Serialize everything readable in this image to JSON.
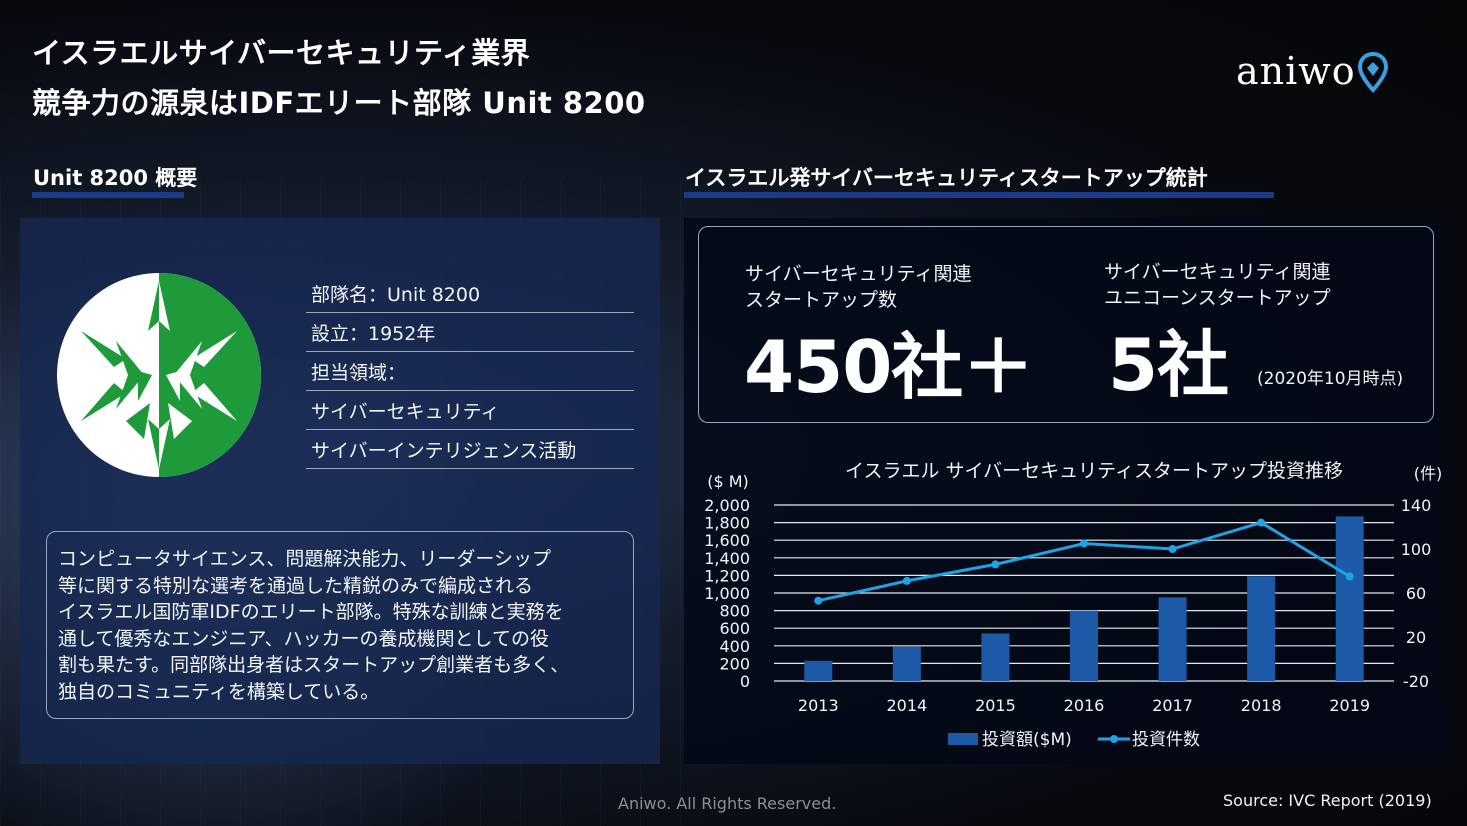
{
  "header": {
    "title_line1": "イスラエルサイバーセキュリティ業界",
    "title_line2": "競争力の源泉はIDFエリート部隊 Unit 8200",
    "logo_text": "aniwo"
  },
  "left": {
    "section_title": "Unit 8200 概要",
    "info_rows": [
      "部隊名：Unit 8200",
      "設立：1952年",
      "担当領域：",
      "サイバーセキュリティ",
      "サイバーインテリジェンス活動"
    ],
    "description_lines": [
      "コンピュータサイエンス、問題解決能力、リーダーシップ",
      "等に関する特別な選考を通過した精鋭のみで編成される",
      "イスラエル国防軍IDFのエリート部隊。特殊な訓練と実務を",
      "通して優秀なエンジニア、ハッカーの養成機関としての役",
      "割も果たす。同部隊出身者はスタートアップ創業者も多く、",
      "独自のコミュニティを構築している。"
    ]
  },
  "right": {
    "section_title": "イスラエル発サイバーセキュリティスタートアップ統計",
    "stat1_label_line1": "サイバーセキュリティ関連",
    "stat1_label_line2": "スタートアップ数",
    "stat1_value": "450社＋",
    "stat2_label_line1": "サイバーセキュリティ関連",
    "stat2_label_line2": "ユニコーンスタートアップ",
    "stat2_value": "5社",
    "stat2_note": "(2020年10月時点)"
  },
  "chart_data": {
    "type": "bar",
    "title": "イスラエル サイバーセキュリティスタートアップ投資推移",
    "categories": [
      "2013",
      "2014",
      "2015",
      "2016",
      "2017",
      "2018",
      "2019"
    ],
    "ylabel": "($ M)",
    "y2label": "(件)",
    "ylim": [
      0,
      2000
    ],
    "yticks": [
      "0",
      "200",
      "400",
      "600",
      "800",
      "1,000",
      "1,200",
      "1,400",
      "1,600",
      "1,800",
      "2,000"
    ],
    "y2lim": [
      -20,
      140
    ],
    "y2ticks": [
      "-20",
      "20",
      "60",
      "100",
      "140"
    ],
    "grid": true,
    "legend_position": "bottom",
    "series": [
      {
        "name": "投資額($M)",
        "type": "bar",
        "axis": "left",
        "color": "#1c5aa8",
        "values": [
          230,
          390,
          540,
          800,
          950,
          1190,
          1870
        ]
      },
      {
        "name": "投資件数",
        "type": "line",
        "axis": "right",
        "color": "#1fa3e6",
        "values": [
          53,
          71,
          86,
          105,
          100,
          124,
          75
        ]
      }
    ]
  },
  "footer": {
    "copyright": "Aniwo. All Rights Reserved.",
    "source": "Source: IVC Report (2019)"
  },
  "colors": {
    "panel_left": "#162852",
    "section_bar": "#1b3a8a",
    "emblem_green": "#1f9a3a",
    "logo_pin": "#3aa0e0"
  }
}
